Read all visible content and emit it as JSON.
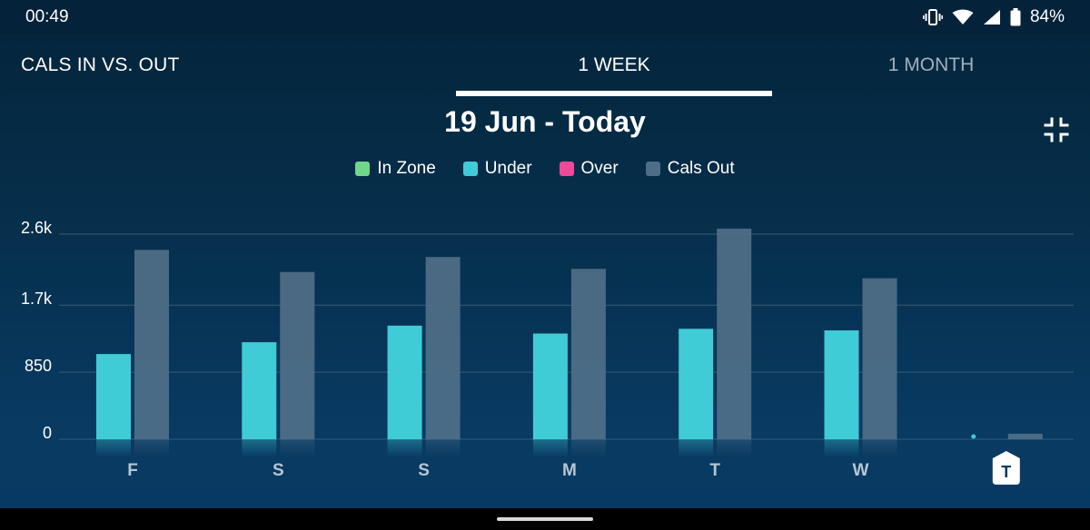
{
  "status": {
    "time": "00:49",
    "battery": "84%"
  },
  "tabs": {
    "left": "CALS IN VS. OUT",
    "week": "1 WEEK",
    "month": "1 MONTH"
  },
  "range_title": "19 Jun - Today",
  "legend": [
    {
      "label": "In Zone",
      "color": "#6fd68c"
    },
    {
      "label": "Under",
      "color": "#40ccd6"
    },
    {
      "label": "Over",
      "color": "#ef4a98"
    },
    {
      "label": "Cals Out",
      "color": "#4e6e87"
    }
  ],
  "today_badge": "T",
  "chart_data": {
    "type": "bar",
    "categories": [
      "F",
      "S",
      "S",
      "M",
      "T",
      "W",
      "T"
    ],
    "series": [
      {
        "name": "Under",
        "color": "#40ccd6",
        "values": [
          1080,
          1230,
          1440,
          1340,
          1400,
          1380,
          0
        ]
      },
      {
        "name": "Cals Out",
        "color": "#4e6e87",
        "values": [
          2400,
          2120,
          2310,
          2160,
          2670,
          2040,
          70
        ]
      }
    ],
    "yticks": [
      0,
      850,
      1700,
      2600
    ],
    "ytick_labels": [
      "0",
      "850",
      "1.7k",
      "2.6k"
    ],
    "ylim": [
      0,
      2600
    ],
    "grid": true,
    "legend_position": "top"
  }
}
